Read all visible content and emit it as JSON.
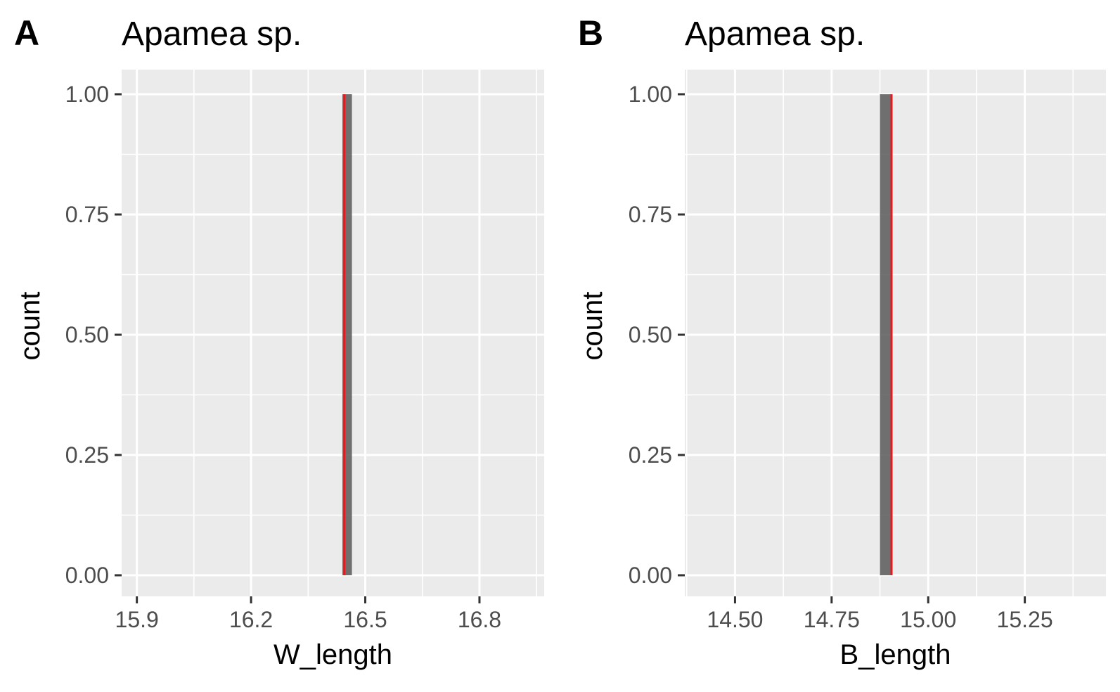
{
  "chart_data": [
    {
      "type": "bar",
      "panel_tag": "A",
      "title": "Apamea sp.",
      "xlabel": "W_length",
      "ylabel": "count",
      "xlim": [
        15.86,
        16.97
      ],
      "ylim": [
        -0.05,
        1.05
      ],
      "x_ticks": [
        15.9,
        16.2,
        16.5,
        16.8
      ],
      "x_tick_labels": [
        "15.9",
        "16.2",
        "16.5",
        "16.8"
      ],
      "y_ticks": [
        0,
        0.25,
        0.5,
        0.75,
        1
      ],
      "y_tick_labels": [
        "0.00",
        "0.25",
        "0.50",
        "0.75",
        "1.00"
      ],
      "bars": [
        {
          "x_min": 16.44,
          "x_max": 16.465,
          "count": 1
        }
      ],
      "reference_line": {
        "x": 16.445,
        "color": "#e41a1c"
      },
      "grid": true,
      "bar_color": "#595959"
    },
    {
      "type": "bar",
      "panel_tag": "B",
      "title": "Apamea sp.",
      "xlabel": "B_length",
      "ylabel": "count",
      "xlim": [
        14.37,
        15.46
      ],
      "ylim": [
        -0.05,
        1.05
      ],
      "x_ticks": [
        14.5,
        14.75,
        15.0,
        15.25
      ],
      "x_tick_labels": [
        "14.50",
        "14.75",
        "15.00",
        "15.25"
      ],
      "y_ticks": [
        0,
        0.25,
        0.5,
        0.75,
        1
      ],
      "y_tick_labels": [
        "0.00",
        "0.25",
        "0.50",
        "0.75",
        "1.00"
      ],
      "bars": [
        {
          "x_min": 14.875,
          "x_max": 14.905,
          "count": 1
        }
      ],
      "reference_line": {
        "x": 14.905,
        "color": "#e41a1c"
      },
      "grid": true,
      "bar_color": "#595959"
    }
  ]
}
